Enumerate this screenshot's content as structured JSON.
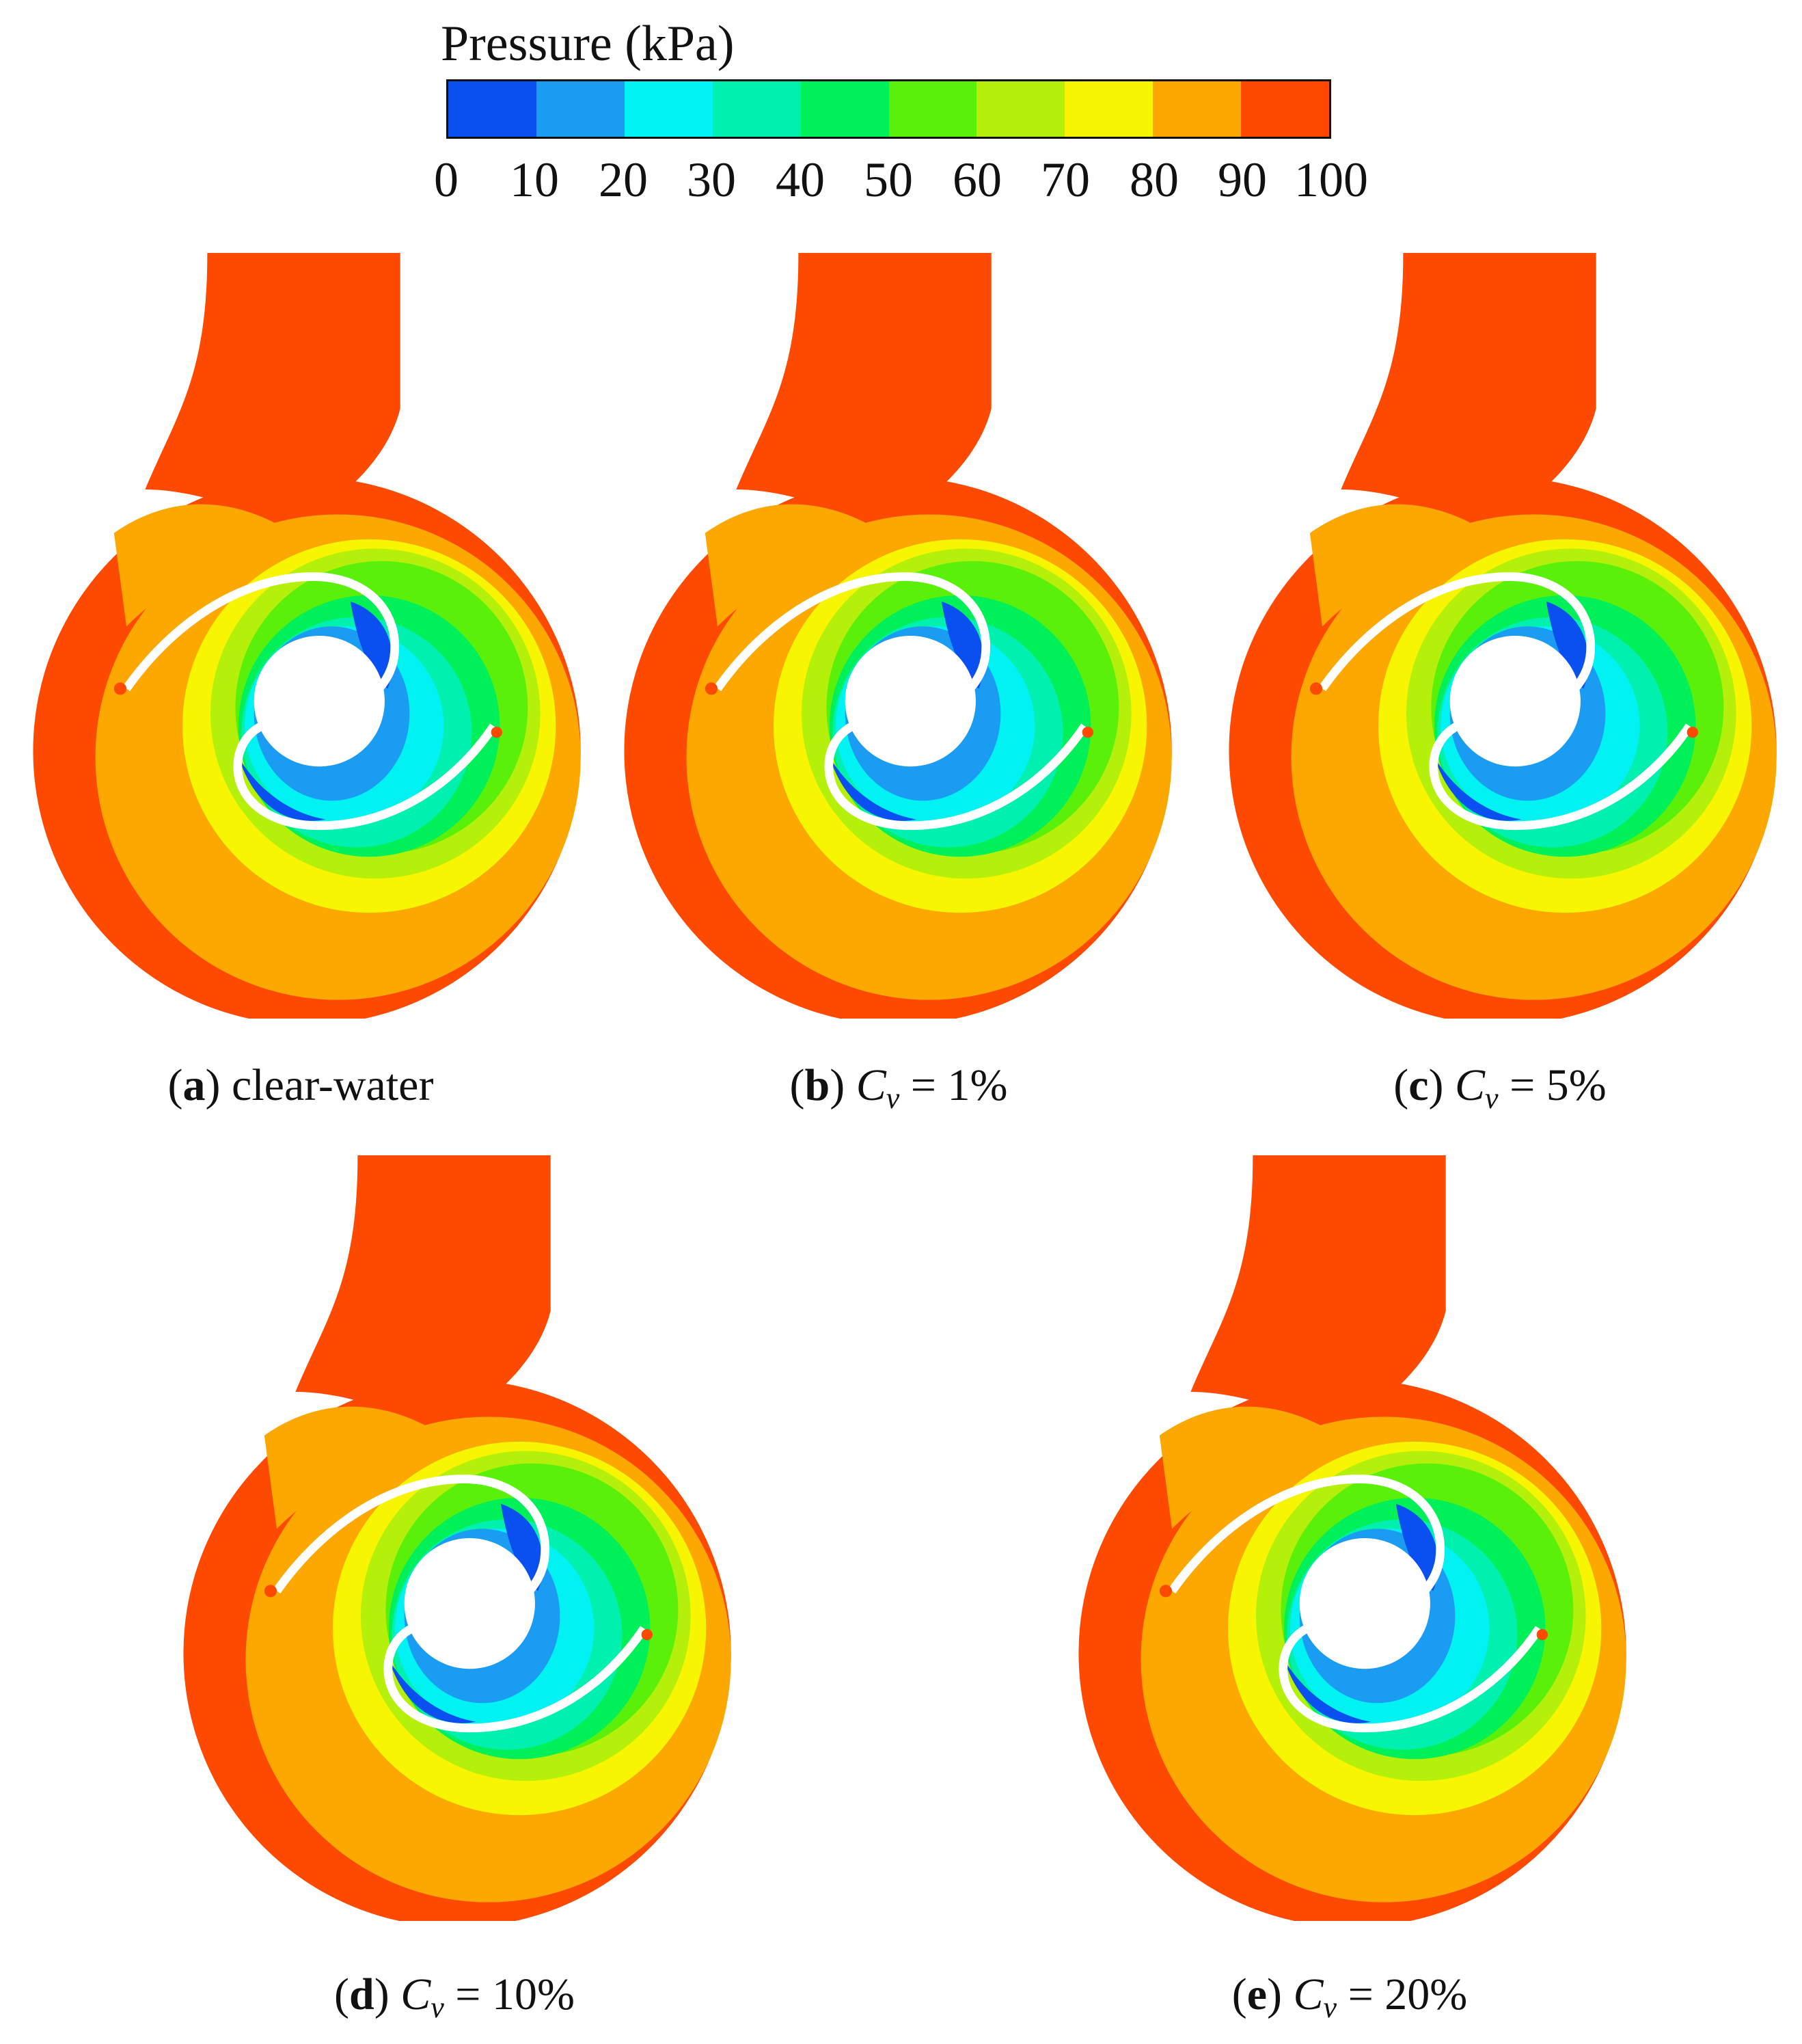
{
  "colorbar": {
    "title": "Pressure (kPa)",
    "ticks": [
      "0",
      "10",
      "20",
      "30",
      "40",
      "50",
      "60",
      "70",
      "80",
      "90",
      "100"
    ],
    "colors": [
      "#0a4ff0",
      "#1a9cf2",
      "#00f2f2",
      "#00f0b0",
      "#00f05a",
      "#5af00a",
      "#b4f00a",
      "#f7f500",
      "#fca800",
      "#fe4a00"
    ]
  },
  "panels": [
    {
      "label": "a",
      "text": "clear-water",
      "var": "",
      "sub": "",
      "eq": ""
    },
    {
      "label": "b",
      "text": "",
      "var": "C",
      "sub": "v",
      "eq": " = 1%"
    },
    {
      "label": "c",
      "text": "",
      "var": "C",
      "sub": "v",
      "eq": " = 5%"
    },
    {
      "label": "d",
      "text": "",
      "var": "C",
      "sub": "v",
      "eq": " = 10%"
    },
    {
      "label": "e",
      "text": "",
      "var": "C",
      "sub": "v",
      "eq": " = 20%"
    }
  ]
}
